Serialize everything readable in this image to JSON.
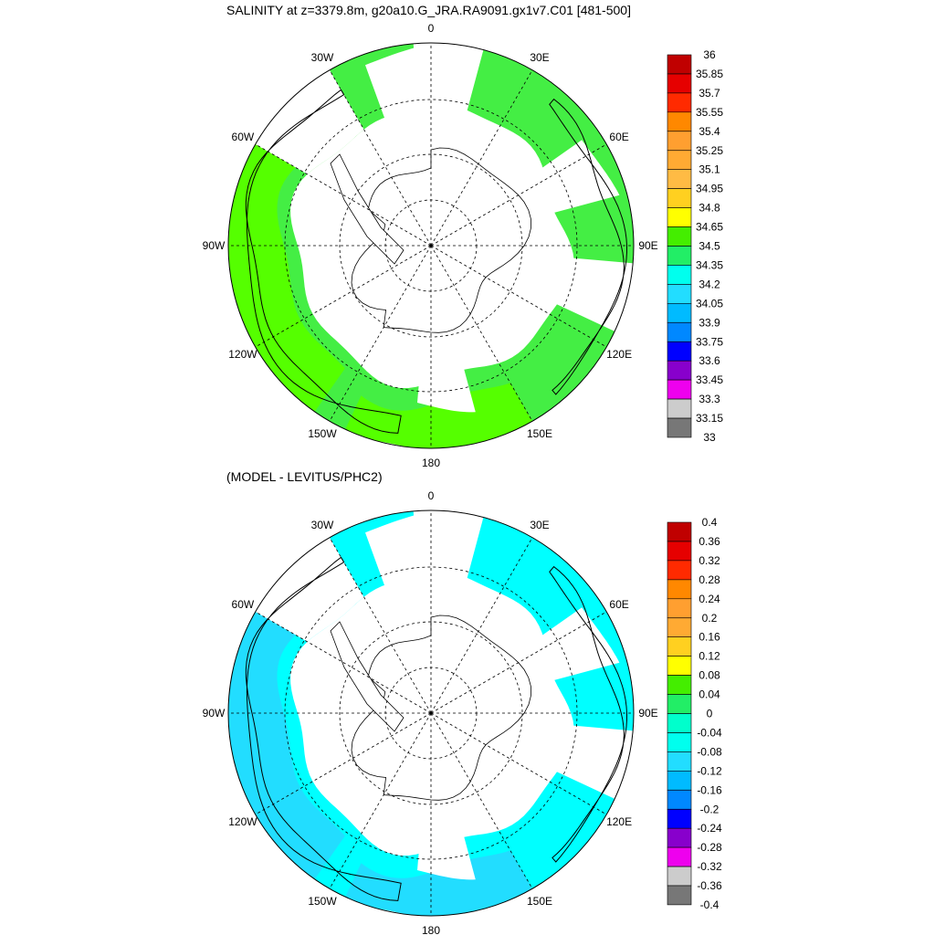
{
  "panels": [
    {
      "title": "SALINITY at z=3379.8m, g20a10.G_JRA.RA9091.gx1v7.C01 [481-500]",
      "lon_labels": [
        "0",
        "30E",
        "60E",
        "90E",
        "120E",
        "150E",
        "180",
        "150W",
        "120W",
        "90W",
        "60W",
        "30W"
      ],
      "colorbar": {
        "labels": [
          "36",
          "35.85",
          "35.7",
          "35.55",
          "35.4",
          "35.25",
          "35.1",
          "34.95",
          "34.8",
          "34.65",
          "34.5",
          "34.35",
          "34.2",
          "34.05",
          "33.9",
          "33.75",
          "33.6",
          "33.45",
          "33.3",
          "33.15",
          "33"
        ],
        "colors": [
          "#c00000",
          "#e60000",
          "#ff2a00",
          "#ff8800",
          "#ff9f30",
          "#ffaa33",
          "#ffbb44",
          "#ffd020",
          "#ffff00",
          "#44ee00",
          "#22ee66",
          "#00ffee",
          "#22ddff",
          "#00bbff",
          "#0088ff",
          "#0000ff",
          "#8800cc",
          "#ee00ee",
          "#cccccc",
          "#777777"
        ]
      },
      "colors": {
        "primary": "#44ee44",
        "secondary": "#55ff00"
      }
    },
    {
      "title": "(MODEL - LEVITUS/PHC2)",
      "lon_labels": [
        "0",
        "30E",
        "60E",
        "90E",
        "120E",
        "150E",
        "180",
        "150W",
        "120W",
        "90W",
        "60W",
        "30W"
      ],
      "colorbar": {
        "labels": [
          "0.4",
          "0.36",
          "0.32",
          "0.28",
          "0.24",
          "0.2",
          "0.16",
          "0.12",
          "0.08",
          "0.04",
          "0",
          "-0.04",
          "-0.08",
          "-0.12",
          "-0.16",
          "-0.2",
          "-0.24",
          "-0.28",
          "-0.32",
          "-0.36",
          "-0.4"
        ],
        "colors": [
          "#c00000",
          "#e60000",
          "#ff2a00",
          "#ff8800",
          "#ff9f30",
          "#ffaa33",
          "#ffd020",
          "#ffff00",
          "#44ee00",
          "#22ee66",
          "#00ffcc",
          "#00ffee",
          "#22ddff",
          "#00bbff",
          "#0088ff",
          "#0000ff",
          "#8800cc",
          "#ee00ee",
          "#cccccc",
          "#777777"
        ]
      },
      "colors": {
        "primary": "#00ffff",
        "secondary": "#22ddff"
      }
    }
  ]
}
